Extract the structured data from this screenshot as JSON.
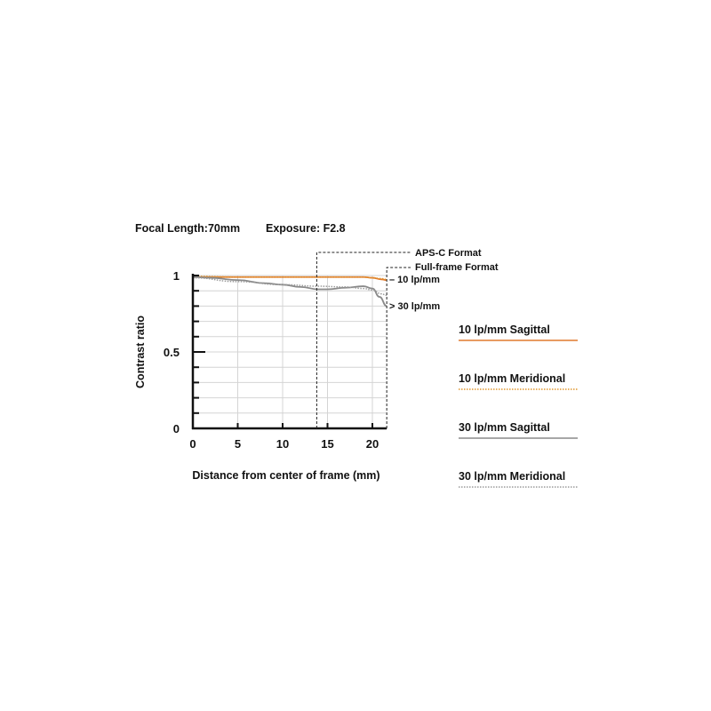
{
  "header": {
    "focal_length": "Focal Length:70mm",
    "exposure": "Exposure: F2.8"
  },
  "chart_data": {
    "type": "line",
    "xlabel": "Distance from center of frame (mm)",
    "ylabel": "Contrast ratio",
    "xlim": [
      0,
      21.6
    ],
    "ylim": [
      0,
      1
    ],
    "x_ticks": [
      "0",
      "5",
      "10",
      "15",
      "20"
    ],
    "y_ticks": [
      "0",
      "0.5",
      "1"
    ],
    "grid": true,
    "annotations": {
      "apsc": {
        "label": "APS-C Format",
        "x": 13.8
      },
      "fullframe": {
        "label": "Full-frame Format",
        "x": 21.6
      },
      "lp10": "– 10 lp/mm",
      "lp30": "> 30 lp/mm"
    },
    "legend_placement": "right",
    "series": [
      {
        "name": "10 lp/mm Sagittal",
        "color": "#e07a2e",
        "style": "solid",
        "x": [
          0,
          5,
          10,
          14,
          17,
          19,
          20,
          21,
          21.6
        ],
        "y": [
          0.99,
          0.99,
          0.99,
          0.99,
          0.99,
          0.99,
          0.985,
          0.975,
          0.97
        ]
      },
      {
        "name": "10 lp/mm Meridional",
        "color": "#e0962e",
        "style": "dotted",
        "x": [
          0,
          5,
          10,
          14,
          17,
          19,
          20,
          21,
          21.6
        ],
        "y": [
          0.995,
          0.99,
          0.99,
          0.99,
          0.99,
          0.99,
          0.985,
          0.98,
          0.975
        ]
      },
      {
        "name": "30 lp/mm Sagittal",
        "color": "#8a8a8a",
        "style": "solid",
        "x": [
          0,
          2,
          5,
          8,
          10,
          12,
          14,
          15,
          17,
          19,
          20,
          20.8,
          21.6
        ],
        "y": [
          0.99,
          0.985,
          0.97,
          0.95,
          0.94,
          0.925,
          0.91,
          0.91,
          0.92,
          0.93,
          0.915,
          0.86,
          0.8
        ]
      },
      {
        "name": "30 lp/mm Meridional",
        "color": "#9a9a9a",
        "style": "dotted",
        "x": [
          0,
          5,
          10,
          14,
          17,
          19,
          20,
          21,
          21.6
        ],
        "y": [
          0.985,
          0.96,
          0.94,
          0.93,
          0.925,
          0.915,
          0.905,
          0.88,
          0.87
        ]
      }
    ]
  }
}
